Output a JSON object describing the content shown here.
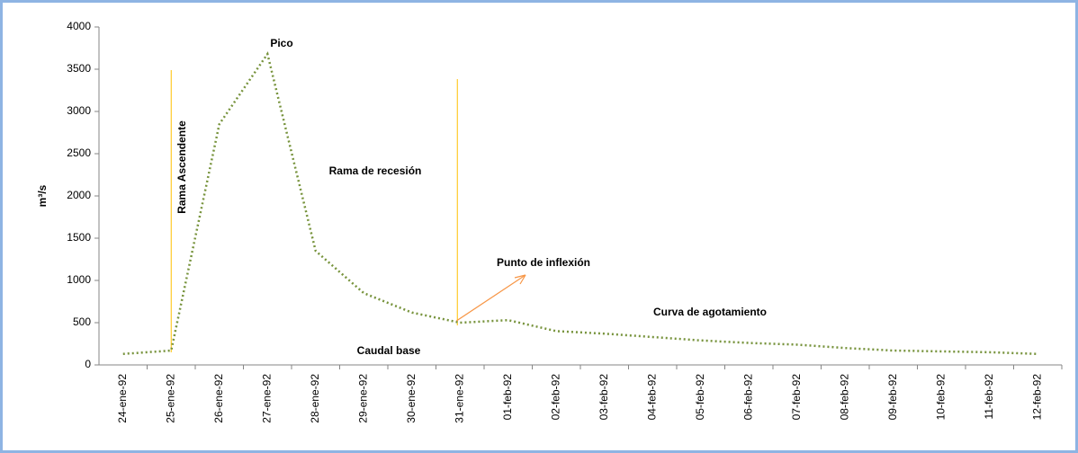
{
  "chart_data": {
    "type": "line",
    "y_label": "m³/s",
    "categories": [
      "24-ene-92",
      "25-ene-92",
      "26-ene-92",
      "27-ene-92",
      "28-ene-92",
      "29-ene-92",
      "30-ene-92",
      "31-ene-92",
      "01-feb-92",
      "02-feb-92",
      "03-feb-92",
      "04-feb-92",
      "05-feb-92",
      "06-feb-92",
      "07-feb-92",
      "08-feb-92",
      "09-feb-92",
      "10-feb-92",
      "11-feb-92",
      "12-feb-92"
    ],
    "series": [
      {
        "color": "#77933c",
        "style": "dotted",
        "values": [
          130,
          170,
          2850,
          3680,
          1350,
          850,
          620,
          500,
          530,
          400,
          370,
          330,
          290,
          260,
          240,
          200,
          170,
          160,
          150,
          130
        ]
      },
      {
        "color": "#ffc000",
        "style": "dashed",
        "values": [
          null,
          190,
          null,
          null,
          null,
          null,
          null,
          500,
          null,
          null,
          null,
          null,
          null,
          null,
          null,
          null,
          null,
          null,
          null,
          null
        ]
      }
    ],
    "annotations": [
      "Pico",
      "Rama Ascendente",
      "Rama de recesión",
      "Punto de inflexión",
      "Curva de agotamiento",
      "Caudal base"
    ],
    "annotation_color": "#e46c0a",
    "ylim": [
      0,
      4000
    ],
    "yticks": [
      0,
      500,
      1000,
      1500,
      2000,
      2500,
      3000,
      3500,
      4000
    ],
    "grid": false
  }
}
